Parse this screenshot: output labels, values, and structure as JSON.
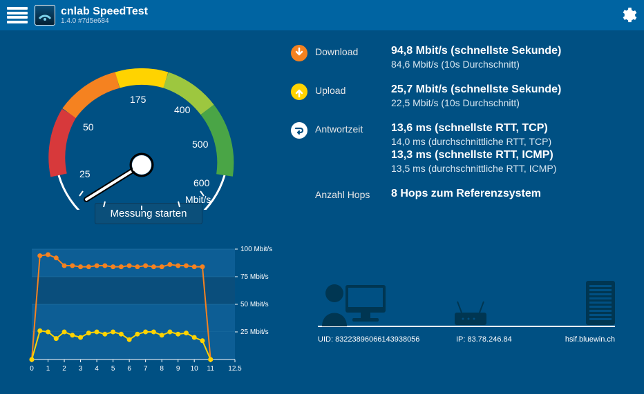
{
  "colors": {
    "bg": "#005083",
    "header": "#0064a2",
    "button": "#0b4f7a",
    "download_icon": "#f58220",
    "upload_icon": "#ffd300",
    "response_icon": "#ffffff",
    "chart_series_download": "#f58220",
    "chart_series_upload": "#ffd300",
    "chart_band_light": "#0d5e95",
    "chart_band_dark": "#0a4e7c",
    "gauge_track": "#ffffff",
    "topology_dark": "#003652",
    "text": "#ffffff",
    "text_muted": "#d6e6f0"
  },
  "header": {
    "title": "cnlab SpeedTest",
    "version": "1.4.0 #7d5e684"
  },
  "gauge": {
    "unit": "Mbit/s",
    "ticks": [
      "25",
      "50",
      "175",
      "400",
      "500",
      "600"
    ],
    "aspect": 1.6
  },
  "start_button": "Messung starten",
  "metrics": {
    "download": {
      "label": "Download",
      "primary": "94,8 Mbit/s (schnellste Sekunde)",
      "secondary": "84,6 Mbit/s (10s Durchschnitt)"
    },
    "upload": {
      "label": "Upload",
      "primary": "25,7 Mbit/s (schnellste Sekunde)",
      "secondary": "22,5 Mbit/s (10s Durchschnitt)"
    },
    "response": {
      "label": "Antwortzeit",
      "primary1": "13,6 ms (schnellste RTT, TCP)",
      "secondary1": "14,0 ms (durchschnittliche RTT, TCP)",
      "primary2": "13,3 ms (schnellste RTT, ICMP)",
      "secondary2": "13,5 ms (durchschnittliche RTT, ICMP)"
    },
    "hops": {
      "label": "Anzahl Hops",
      "value": "8 Hops zum Referenzsystem"
    }
  },
  "chart": {
    "y_ticks": [
      "100 Mbit/s",
      "75 Mbit/s",
      "50 Mbit/s",
      "25 Mbit/s"
    ],
    "y_values": [
      100,
      75,
      50,
      25
    ],
    "x_ticks": [
      "0",
      "1",
      "2",
      "3",
      "4",
      "5",
      "6",
      "7",
      "8",
      "9",
      "10",
      "11",
      "12.5"
    ],
    "x_max": 12.5,
    "y_max": 105,
    "download_series": [
      {
        "x": 0,
        "y": 0
      },
      {
        "x": 0.5,
        "y": 94
      },
      {
        "x": 1,
        "y": 95
      },
      {
        "x": 1.5,
        "y": 92
      },
      {
        "x": 2,
        "y": 85
      },
      {
        "x": 2.5,
        "y": 85
      },
      {
        "x": 3,
        "y": 84
      },
      {
        "x": 3.5,
        "y": 84
      },
      {
        "x": 4,
        "y": 85
      },
      {
        "x": 4.5,
        "y": 85
      },
      {
        "x": 5,
        "y": 84
      },
      {
        "x": 5.5,
        "y": 84
      },
      {
        "x": 6,
        "y": 85
      },
      {
        "x": 6.5,
        "y": 84
      },
      {
        "x": 7,
        "y": 85
      },
      {
        "x": 7.5,
        "y": 84
      },
      {
        "x": 8,
        "y": 84
      },
      {
        "x": 8.5,
        "y": 86
      },
      {
        "x": 9,
        "y": 85
      },
      {
        "x": 9.5,
        "y": 85
      },
      {
        "x": 10,
        "y": 84
      },
      {
        "x": 10.5,
        "y": 84
      },
      {
        "x": 11,
        "y": 0
      }
    ],
    "upload_series": [
      {
        "x": 0,
        "y": 0
      },
      {
        "x": 0.5,
        "y": 26
      },
      {
        "x": 1,
        "y": 25
      },
      {
        "x": 1.5,
        "y": 19
      },
      {
        "x": 2,
        "y": 25
      },
      {
        "x": 2.5,
        "y": 22
      },
      {
        "x": 3,
        "y": 20
      },
      {
        "x": 3.5,
        "y": 24
      },
      {
        "x": 4,
        "y": 25
      },
      {
        "x": 4.5,
        "y": 23
      },
      {
        "x": 5,
        "y": 25
      },
      {
        "x": 5.5,
        "y": 23
      },
      {
        "x": 6,
        "y": 18
      },
      {
        "x": 6.5,
        "y": 23
      },
      {
        "x": 7,
        "y": 25
      },
      {
        "x": 7.5,
        "y": 25
      },
      {
        "x": 8,
        "y": 22
      },
      {
        "x": 8.5,
        "y": 25
      },
      {
        "x": 9,
        "y": 23
      },
      {
        "x": 9.5,
        "y": 24
      },
      {
        "x": 10,
        "y": 20
      },
      {
        "x": 10.5,
        "y": 17
      },
      {
        "x": 11,
        "y": 0
      }
    ]
  },
  "topology": {
    "uid_label": "UID:",
    "uid": "83223896066143938056",
    "ip_label": "IP:",
    "ip": "83.78.246.84",
    "server": "hsif.bluewin.ch"
  }
}
